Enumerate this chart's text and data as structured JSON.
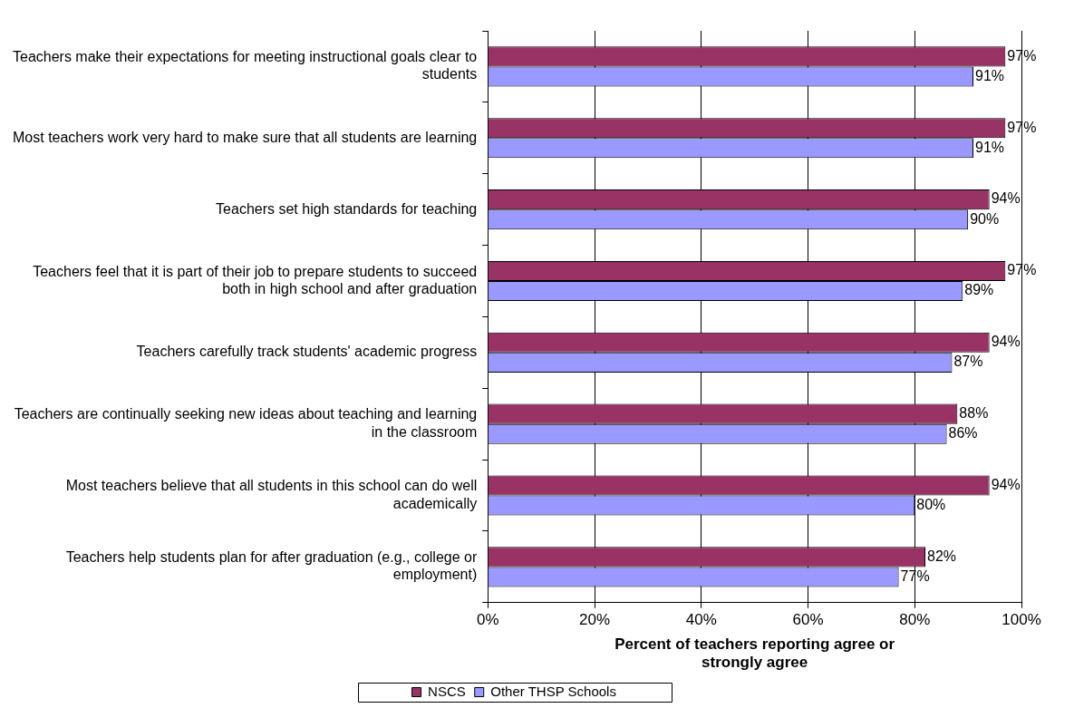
{
  "chart_data": {
    "type": "bar",
    "orientation": "horizontal",
    "xlabel": "Percent of teachers reporting agree or strongly agree",
    "categories": [
      "Teachers make their expectations for meeting instructional goals clear to students",
      "Most teachers work very hard to make sure that all students are learning",
      "Teachers set high standards for teaching",
      "Teachers feel that it is part of their job to prepare students to succeed both in high school and after graduation",
      "Teachers carefully track students' academic progress",
      "Teachers are continually seeking new ideas about teaching and learning in the classroom",
      "Most teachers believe that all students in this school can do well academically",
      "Teachers help students plan for after graduation (e.g., college or employment)"
    ],
    "series": [
      {
        "name": "NSCS",
        "color": "#993366",
        "values": [
          97,
          97,
          94,
          97,
          94,
          88,
          94,
          82
        ],
        "value_labels": [
          "97%",
          "97%",
          "94%",
          "97%",
          "94%",
          "88%",
          "94%",
          "82%"
        ]
      },
      {
        "name": "Other THSP Schools",
        "color": "#9999ff",
        "values": [
          91,
          91,
          90,
          89,
          87,
          86,
          80,
          77
        ],
        "value_labels": [
          "91%",
          "91%",
          "90%",
          "89%",
          "87%",
          "86%",
          "80%",
          "77%"
        ]
      }
    ],
    "xlim": [
      0,
      100
    ],
    "xticks": [
      {
        "value": 0,
        "label": "0%"
      },
      {
        "value": 20,
        "label": "20%"
      },
      {
        "value": 40,
        "label": "40%"
      },
      {
        "value": 60,
        "label": "60%"
      },
      {
        "value": 80,
        "label": "80%"
      },
      {
        "value": 100,
        "label": "100%"
      }
    ],
    "grid": "x",
    "legend": "bottom"
  }
}
